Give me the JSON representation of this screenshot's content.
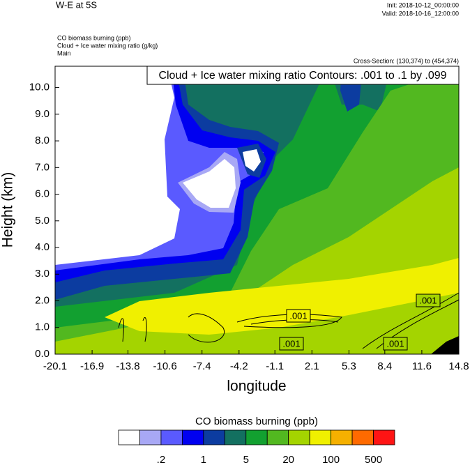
{
  "chart_data": {
    "type": "contour",
    "title": "W-E at 5S",
    "init": "Init: 2018-10-12_00:00:00",
    "valid": "Valid: 2018-10-16_12:00:00",
    "fields": [
      "CO biomass burning   (ppb)",
      "Cloud + Ice water mixing ratio   (g/kg)",
      "Main"
    ],
    "cross_section": "Cross-Section: (130,374) to (454,374)",
    "contour_note": "Cloud + Ice water mixing ratio Contours: .001 to .1 by .099",
    "xlabel": "longitude",
    "ylabel": "Height (km)",
    "xlim": [
      -20.1,
      14.8
    ],
    "xticks": [
      -20.1,
      -16.9,
      -13.8,
      -10.6,
      -7.4,
      -4.2,
      -1.1,
      2.1,
      5.3,
      8.4,
      11.6,
      14.8
    ],
    "ylim": [
      0,
      10.8
    ],
    "yticks": [
      {
        "value": 0,
        "label": "0.0"
      },
      {
        "value": 1,
        "label": "1.0"
      },
      {
        "value": 2,
        "label": "2.0"
      },
      {
        "value": 3,
        "label": "3.0"
      },
      {
        "value": 4,
        "label": "4.0"
      },
      {
        "value": 5,
        "label": "5.0"
      },
      {
        "value": 6,
        "label": "6.0"
      },
      {
        "value": 7,
        "label": "7.0"
      },
      {
        "value": 8,
        "label": "8.0"
      },
      {
        "value": 9,
        "label": "9.0"
      },
      {
        "value": 10,
        "label": "10.0"
      }
    ],
    "contour_labels": [
      ".001",
      ".001",
      ".001",
      ".001"
    ],
    "colorbar": {
      "title": "CO biomass burning  (ppb)",
      "colors": [
        "#ffffff",
        "#a8a8f5",
        "#5a5aff",
        "#0000f0",
        "#0c3ca0",
        "#137060",
        "#12a030",
        "#52b820",
        "#a4d400",
        "#f0f000",
        "#f5b000",
        "#ff6a00",
        "#ff1414"
      ],
      "labels": [
        {
          "value": 0.2,
          "label": ".2"
        },
        1,
        5,
        20,
        100,
        500
      ]
    }
  }
}
